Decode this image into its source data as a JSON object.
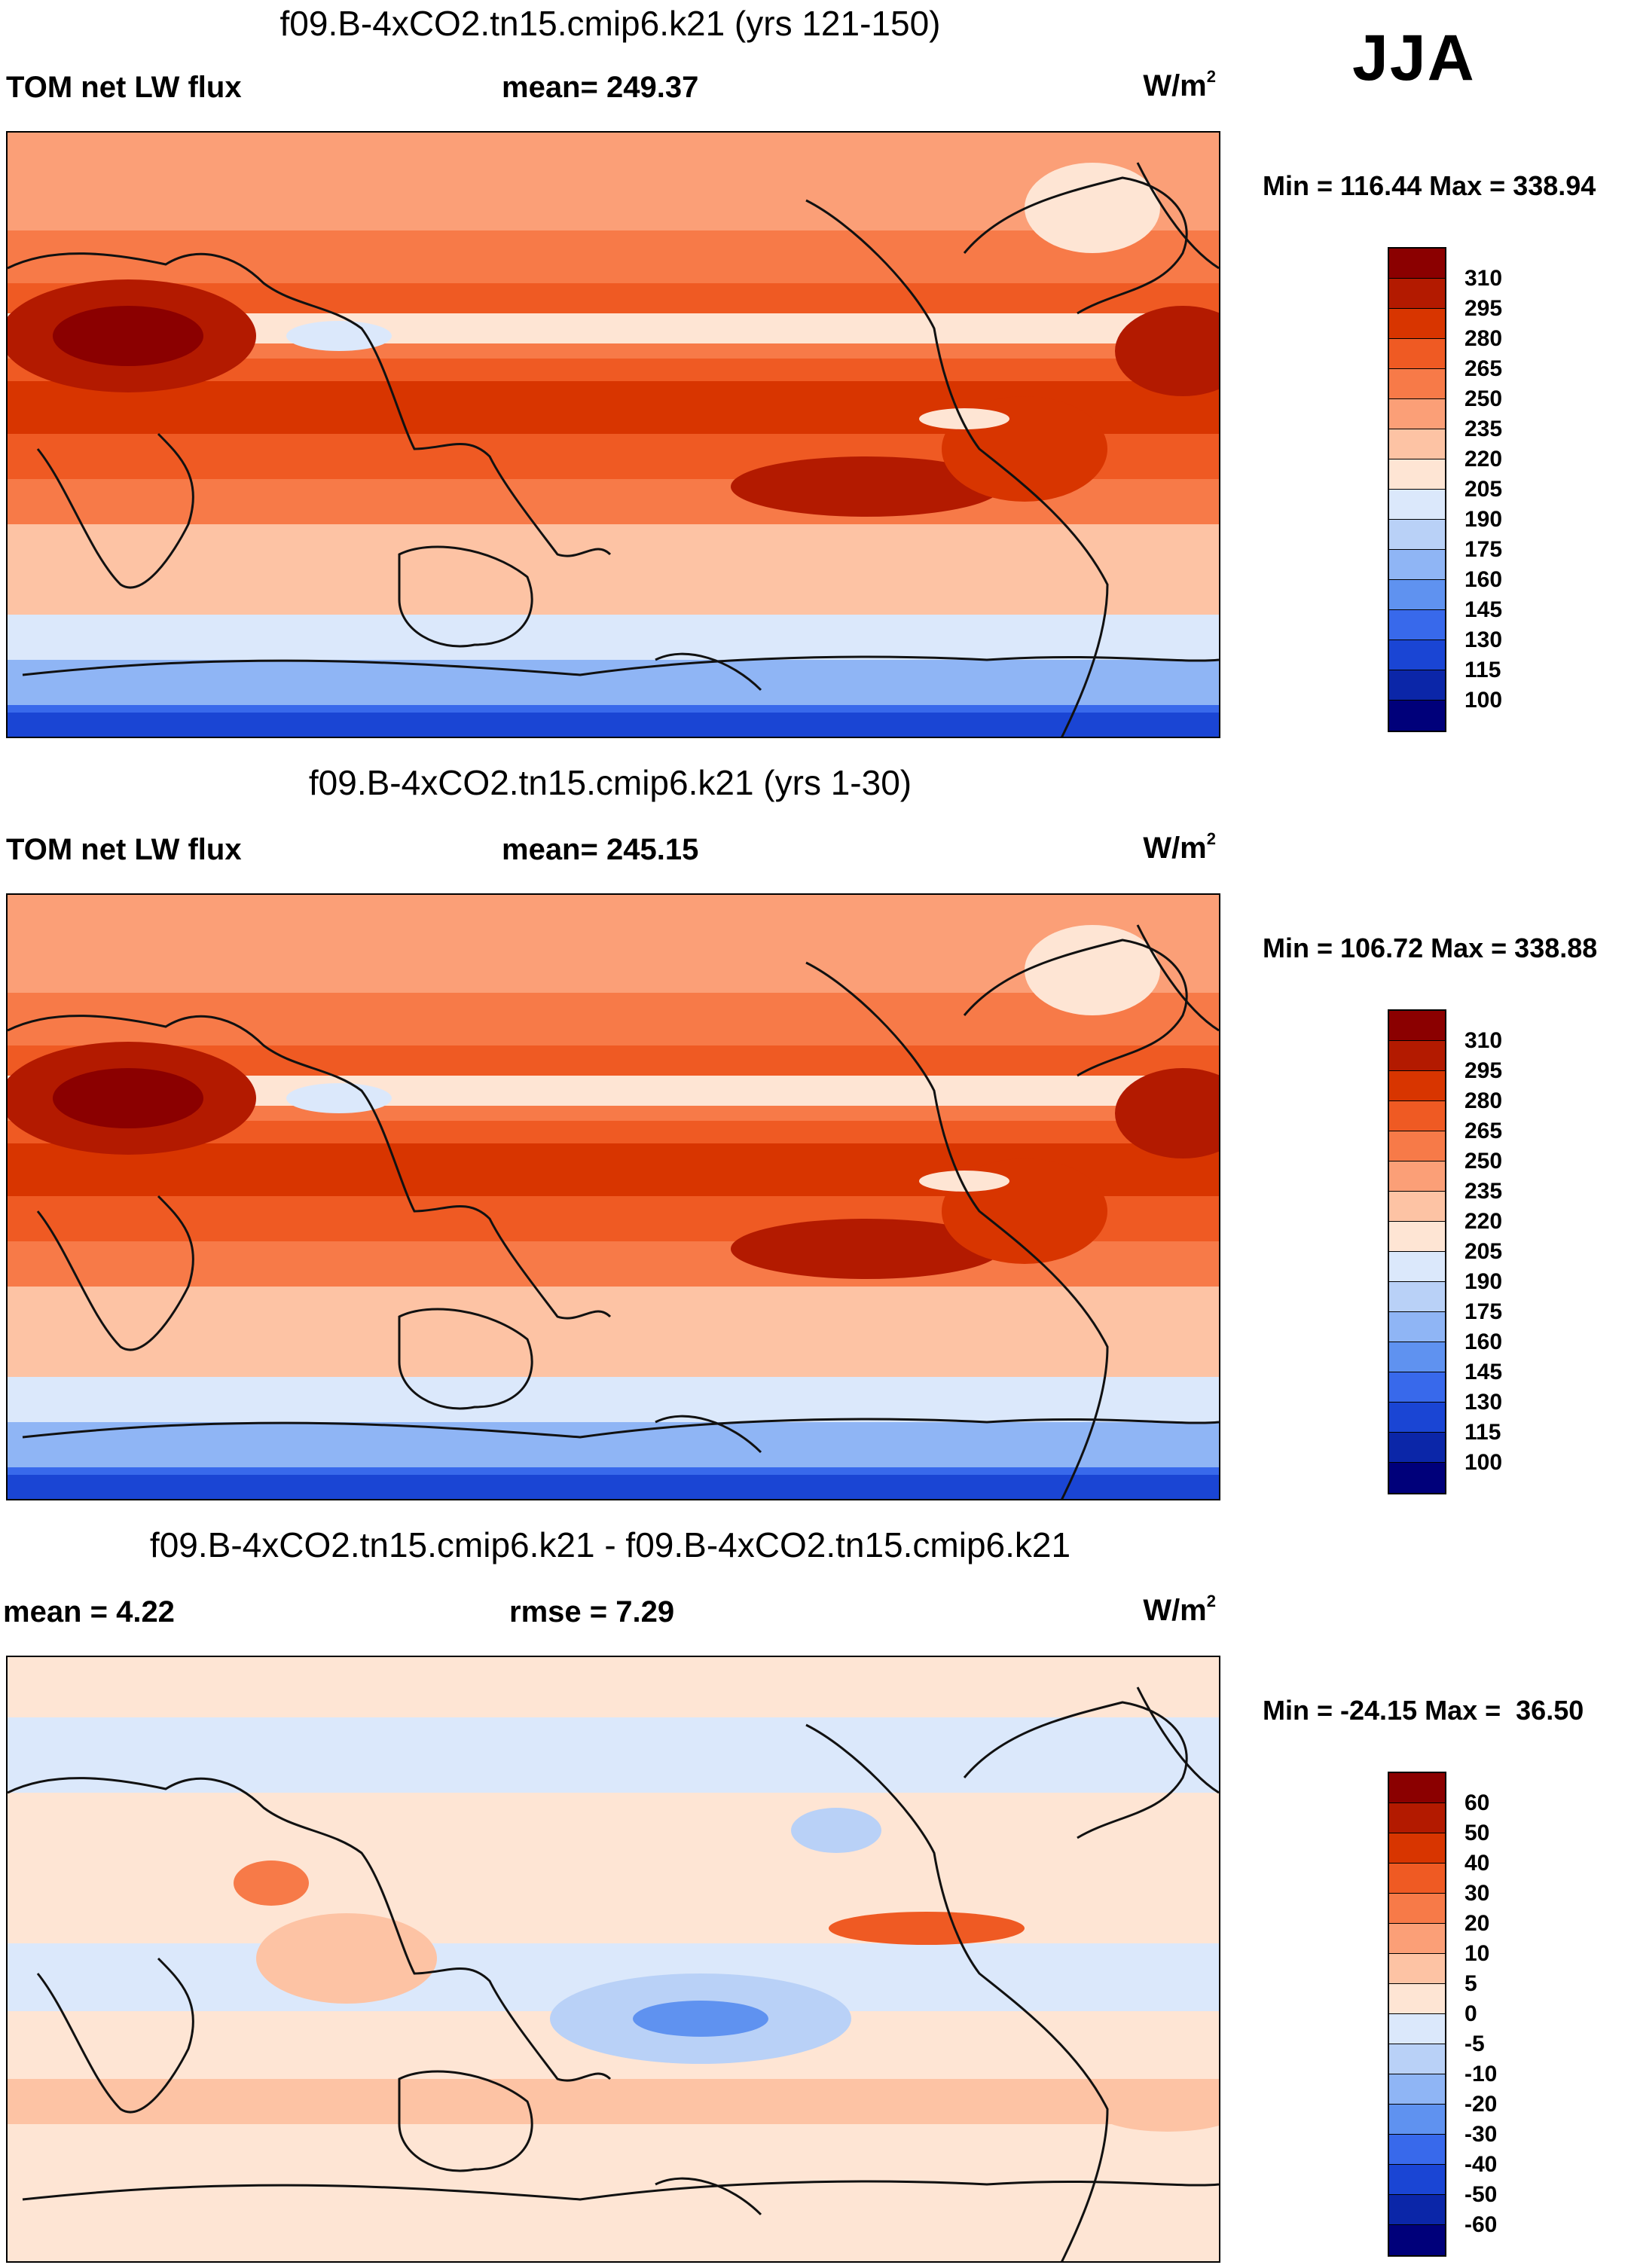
{
  "season": "JJA",
  "panels": [
    {
      "title": "f09.B-4xCO2.tn15.cmip6.k21 (yrs 121-150)",
      "left_label": "TOM net LW flux",
      "center_label": "mean= 249.37",
      "units_base": "W/m",
      "units_sup": "2",
      "minmax": "Min = 116.44 Max = 338.94",
      "colorbar": {
        "labels": [
          "310",
          "295",
          "280",
          "265",
          "250",
          "235",
          "220",
          "205",
          "190",
          "175",
          "160",
          "145",
          "130",
          "115",
          "100"
        ],
        "colors": [
          "#8b0000",
          "#b31a00",
          "#d83500",
          "#ef5a23",
          "#f77a48",
          "#fb9f77",
          "#fdc3a4",
          "#fee5d4",
          "#dbe8fb",
          "#b9d1f7",
          "#8fb5f5",
          "#5f92f0",
          "#3869eb",
          "#1a45d4",
          "#0b26a8",
          "#00007a"
        ]
      }
    },
    {
      "title": "f09.B-4xCO2.tn15.cmip6.k21 (yrs 1-30)",
      "left_label": "TOM net LW flux",
      "center_label": "mean= 245.15",
      "units_base": "W/m",
      "units_sup": "2",
      "minmax": "Min = 106.72 Max = 338.88",
      "colorbar": {
        "labels": [
          "310",
          "295",
          "280",
          "265",
          "250",
          "235",
          "220",
          "205",
          "190",
          "175",
          "160",
          "145",
          "130",
          "115",
          "100"
        ],
        "colors": [
          "#8b0000",
          "#b31a00",
          "#d83500",
          "#ef5a23",
          "#f77a48",
          "#fb9f77",
          "#fdc3a4",
          "#fee5d4",
          "#dbe8fb",
          "#b9d1f7",
          "#8fb5f5",
          "#5f92f0",
          "#3869eb",
          "#1a45d4",
          "#0b26a8",
          "#00007a"
        ]
      }
    },
    {
      "title": "f09.B-4xCO2.tn15.cmip6.k21 - f09.B-4xCO2.tn15.cmip6.k21",
      "left_label": "mean =   4.22",
      "center_label": "rmse =   7.29",
      "units_base": "W/m",
      "units_sup": "2",
      "minmax": "Min = -24.15 Max =  36.50",
      "colorbar": {
        "labels": [
          "60",
          "50",
          "40",
          "30",
          "20",
          "10",
          "5",
          "0",
          "-5",
          "-10",
          "-20",
          "-30",
          "-40",
          "-50",
          "-60"
        ],
        "colors": [
          "#8b0000",
          "#b31a00",
          "#d83500",
          "#ef5a23",
          "#f77a48",
          "#fb9f77",
          "#fdc3a4",
          "#fee5d4",
          "#dbe8fb",
          "#b9d1f7",
          "#8fb5f5",
          "#5f92f0",
          "#3869eb",
          "#1a45d4",
          "#0b26a8",
          "#00007a"
        ]
      }
    }
  ]
}
